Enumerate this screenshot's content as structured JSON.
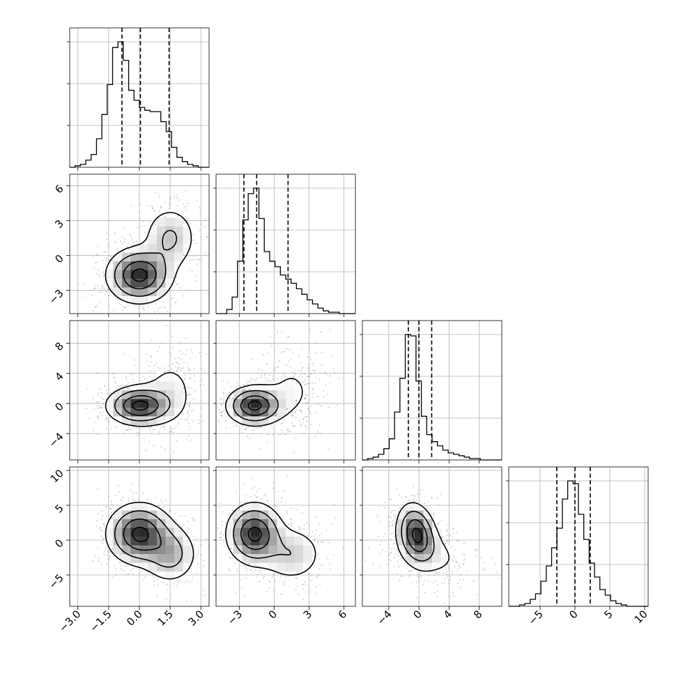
{
  "chart_data": {
    "type": "corner",
    "variables": 4,
    "grid": true,
    "quantiles": [
      0.16,
      0.5,
      0.84
    ],
    "colors": {
      "line": "#000000",
      "grid": "#b0b0b0",
      "points": "#7f7f7f",
      "density_max": "#262626"
    },
    "axes": [
      {
        "range": [
          -3.4,
          3.4
        ],
        "ticks": [
          -3.0,
          -1.5,
          0.0,
          1.5,
          3.0
        ],
        "tick_labels": [
          "−3.0",
          "−1.5",
          "0.0",
          "1.5",
          "3.0"
        ]
      },
      {
        "range": [
          -5.0,
          7.0
        ],
        "ticks": [
          -3,
          0,
          3,
          6
        ],
        "tick_labels": [
          "−3",
          "0",
          "3",
          "6"
        ]
      },
      {
        "range": [
          -7.5,
          11.0
        ],
        "ticks": [
          -4,
          0,
          4,
          8
        ],
        "tick_labels": [
          "−4",
          "0",
          "4",
          "8"
        ]
      },
      {
        "range": [
          -9.5,
          10.5
        ],
        "ticks": [
          -5,
          0,
          5,
          10
        ],
        "tick_labels": [
          "−5",
          "0",
          "5",
          "10"
        ]
      }
    ],
    "histograms": [
      {
        "variable": 0,
        "quantile_values": [
          -0.85,
          0.05,
          1.45
        ],
        "bin_edges": [
          -3.4,
          3.4
        ],
        "bins": 26,
        "counts": [
          0.0,
          0.01,
          0.02,
          0.05,
          0.09,
          0.2,
          0.37,
          0.58,
          0.84,
          0.88,
          0.75,
          0.54,
          0.47,
          0.42,
          0.4,
          0.39,
          0.39,
          0.32,
          0.25,
          0.14,
          0.07,
          0.04,
          0.02,
          0.01,
          0.0,
          0.0
        ]
      },
      {
        "variable": 1,
        "quantile_values": [
          -2.6,
          -1.5,
          1.2
        ],
        "bin_edges": [
          -5.0,
          7.0
        ],
        "bins": 26,
        "counts": [
          0.0,
          0.0,
          0.03,
          0.12,
          0.38,
          0.68,
          0.87,
          0.91,
          0.69,
          0.45,
          0.38,
          0.34,
          0.28,
          0.25,
          0.22,
          0.18,
          0.14,
          0.1,
          0.07,
          0.04,
          0.02,
          0.01,
          0.01,
          0.0,
          0.0,
          0.0
        ]
      },
      {
        "variable": 2,
        "quantile_values": [
          -1.4,
          0.0,
          1.7
        ],
        "bin_edges": [
          -7.5,
          11.0
        ],
        "bins": 26,
        "counts": [
          0.0,
          0.01,
          0.02,
          0.04,
          0.08,
          0.15,
          0.34,
          0.58,
          0.89,
          0.88,
          0.56,
          0.31,
          0.18,
          0.13,
          0.1,
          0.07,
          0.05,
          0.04,
          0.03,
          0.02,
          0.01,
          0.01,
          0.0,
          0.0,
          0.0,
          0.0
        ]
      },
      {
        "variable": 3,
        "quantile_values": [
          -2.6,
          0.0,
          2.2
        ],
        "bin_edges": [
          -9.5,
          10.5
        ],
        "bins": 26,
        "counts": [
          0.0,
          0.0,
          0.01,
          0.02,
          0.05,
          0.09,
          0.18,
          0.29,
          0.42,
          0.56,
          0.77,
          0.9,
          0.88,
          0.66,
          0.48,
          0.31,
          0.21,
          0.12,
          0.08,
          0.04,
          0.02,
          0.01,
          0.0,
          0.0,
          0.0,
          0.0
        ]
      }
    ],
    "joint_distributions": [
      {
        "x": 0,
        "y": 1,
        "modes": [
          {
            "center": [
              0.0,
              -1.7
            ],
            "weight": 0.72,
            "sx": 0.8,
            "sy": 1.2,
            "rho": 0.0
          },
          {
            "center": [
              1.5,
              1.5
            ],
            "weight": 0.28,
            "sx": 0.7,
            "sy": 1.5,
            "rho": 0.0
          }
        ]
      },
      {
        "x": 0,
        "y": 2,
        "modes": [
          {
            "center": [
              0.0,
              -0.3
            ],
            "weight": 0.72,
            "sx": 0.8,
            "sy": 1.3,
            "rho": 0.0
          },
          {
            "center": [
              1.5,
              1.6
            ],
            "weight": 0.28,
            "sx": 0.8,
            "sy": 2.8,
            "rho": 0.0
          }
        ]
      },
      {
        "x": 0,
        "y": 3,
        "modes": [
          {
            "center": [
              0.0,
              0.9
            ],
            "weight": 0.72,
            "sx": 0.8,
            "sy": 2.2,
            "rho": 0.0
          },
          {
            "center": [
              1.5,
              -2.0
            ],
            "weight": 0.28,
            "sx": 0.7,
            "sy": 2.2,
            "rho": 0.0
          }
        ]
      },
      {
        "x": 1,
        "y": 2,
        "modes": [
          {
            "center": [
              -1.7,
              -0.3
            ],
            "weight": 0.72,
            "sx": 1.2,
            "sy": 1.3,
            "rho": 0.0
          },
          {
            "center": [
              1.5,
              1.6
            ],
            "weight": 0.28,
            "sx": 1.5,
            "sy": 2.8,
            "rho": 0.0
          }
        ]
      },
      {
        "x": 1,
        "y": 3,
        "modes": [
          {
            "center": [
              -1.7,
              0.9
            ],
            "weight": 0.72,
            "sx": 1.2,
            "sy": 2.2,
            "rho": 0.0
          },
          {
            "center": [
              1.5,
              -2.0
            ],
            "weight": 0.28,
            "sx": 1.5,
            "sy": 2.2,
            "rho": 0.0
          }
        ]
      },
      {
        "x": 2,
        "y": 3,
        "modes": [
          {
            "center": [
              -0.3,
              0.9
            ],
            "weight": 0.72,
            "sx": 1.3,
            "sy": 2.2,
            "rho": -0.2
          },
          {
            "center": [
              1.6,
              -2.0
            ],
            "weight": 0.28,
            "sx": 2.8,
            "sy": 2.2,
            "rho": -0.3
          }
        ]
      }
    ]
  }
}
